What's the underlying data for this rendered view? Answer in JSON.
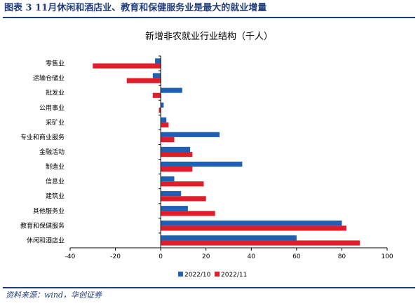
{
  "header": {
    "figure_title": "图表 3   11月休闲和酒店业、教育和保健服务业是最大的就业增量"
  },
  "footer": {
    "source": "资料来源：wind，华创证券"
  },
  "colors": {
    "accent": "#1f3d7a",
    "series_2022_10": "#1f5fb4",
    "series_2022_11": "#e01e2b",
    "axis": "#000000"
  },
  "chart_data": {
    "type": "bar",
    "orientation": "horizontal",
    "title": "新增非农就业行业结构（千人）",
    "xlabel": "",
    "ylabel": "",
    "categories": [
      "零售业",
      "运输仓储业",
      "批发业",
      "公用事业",
      "采矿业",
      "专业和商业服务",
      "金融活动",
      "制造业",
      "信息业",
      "建筑业",
      "其他服务业",
      "教育和保健服务",
      "休闲和酒店业"
    ],
    "series": [
      {
        "name": "2022/10",
        "color": "#1f5fb4",
        "values": [
          -2.5,
          -3.5,
          9.5,
          1.3,
          2.5,
          26,
          13,
          36,
          6,
          9,
          12,
          80,
          60
        ]
      },
      {
        "name": "2022/11",
        "color": "#e01e2b",
        "values": [
          -30,
          -15,
          -3.5,
          -0.8,
          3.5,
          6,
          14,
          14,
          19,
          20,
          24,
          82,
          88
        ]
      }
    ],
    "xlim": [
      -40,
      100
    ],
    "xticks": [
      -40,
      -20,
      0,
      20,
      40,
      60,
      80,
      100
    ],
    "grid": false,
    "legend_position": "bottom"
  }
}
